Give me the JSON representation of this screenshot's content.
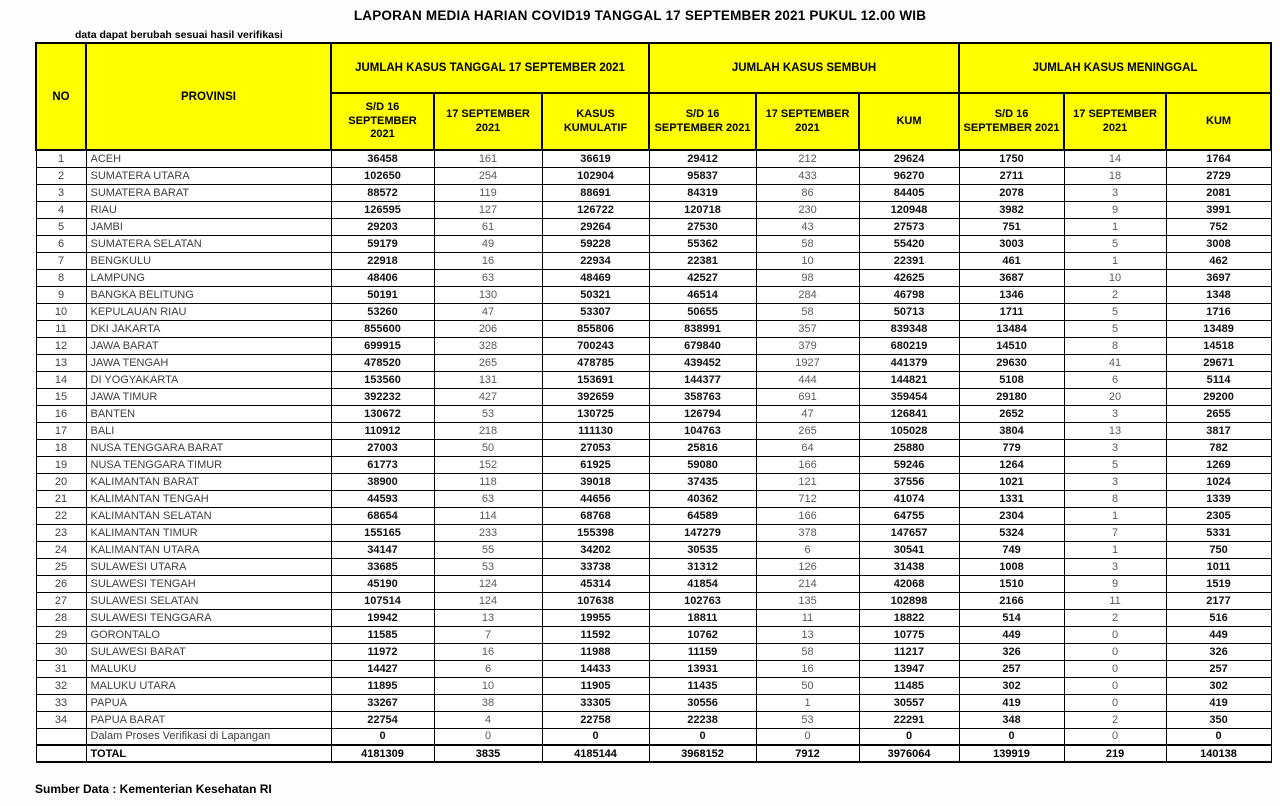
{
  "title": "LAPORAN MEDIA HARIAN COVID19 TANGGAL 17 SEPTEMBER 2021 PUKUL 12.00 WIB",
  "note": "data dapat berubah sesuai hasil verifikasi",
  "source": "Sumber Data : Kementerian Kesehatan RI",
  "colors": {
    "header_bg": "#FFFF00",
    "border": "#000000",
    "muted_text": "#595959"
  },
  "table": {
    "header": {
      "no": "NO",
      "provinsi": "PROVINSI",
      "groups": [
        {
          "label": "JUMLAH KASUS TANGGAL 17 SEPTEMBER 2021",
          "sub": [
            "S/D 16 SEPTEMBER 2021",
            "17 SEPTEMBER 2021",
            "KASUS KUMULATIF"
          ]
        },
        {
          "label": "JUMLAH KASUS SEMBUH",
          "sub": [
            "S/D 16 SEPTEMBER 2021",
            "17 SEPTEMBER 2021",
            "KUM"
          ]
        },
        {
          "label": "JUMLAH KASUS MENINGGAL",
          "sub": [
            "S/D 16 SEPTEMBER 2021",
            "17 SEPTEMBER 2021",
            "KUM"
          ]
        }
      ]
    },
    "rows": [
      {
        "no": "1",
        "provinsi": "ACEH",
        "kasus": [
          36458,
          161,
          36619
        ],
        "sembuh": [
          29412,
          212,
          29624
        ],
        "meninggal": [
          1750,
          14,
          1764
        ]
      },
      {
        "no": "2",
        "provinsi": "SUMATERA UTARA",
        "kasus": [
          102650,
          254,
          102904
        ],
        "sembuh": [
          95837,
          433,
          96270
        ],
        "meninggal": [
          2711,
          18,
          2729
        ]
      },
      {
        "no": "3",
        "provinsi": "SUMATERA BARAT",
        "kasus": [
          88572,
          119,
          88691
        ],
        "sembuh": [
          84319,
          86,
          84405
        ],
        "meninggal": [
          2078,
          3,
          2081
        ]
      },
      {
        "no": "4",
        "provinsi": "RIAU",
        "kasus": [
          126595,
          127,
          126722
        ],
        "sembuh": [
          120718,
          230,
          120948
        ],
        "meninggal": [
          3982,
          9,
          3991
        ]
      },
      {
        "no": "5",
        "provinsi": "JAMBI",
        "kasus": [
          29203,
          61,
          29264
        ],
        "sembuh": [
          27530,
          43,
          27573
        ],
        "meninggal": [
          751,
          1,
          752
        ]
      },
      {
        "no": "6",
        "provinsi": "SUMATERA SELATAN",
        "kasus": [
          59179,
          49,
          59228
        ],
        "sembuh": [
          55362,
          58,
          55420
        ],
        "meninggal": [
          3003,
          5,
          3008
        ]
      },
      {
        "no": "7",
        "provinsi": "BENGKULU",
        "kasus": [
          22918,
          16,
          22934
        ],
        "sembuh": [
          22381,
          10,
          22391
        ],
        "meninggal": [
          461,
          1,
          462
        ]
      },
      {
        "no": "8",
        "provinsi": "LAMPUNG",
        "kasus": [
          48406,
          63,
          48469
        ],
        "sembuh": [
          42527,
          98,
          42625
        ],
        "meninggal": [
          3687,
          10,
          3697
        ]
      },
      {
        "no": "9",
        "provinsi": "BANGKA BELITUNG",
        "kasus": [
          50191,
          130,
          50321
        ],
        "sembuh": [
          46514,
          284,
          46798
        ],
        "meninggal": [
          1346,
          2,
          1348
        ]
      },
      {
        "no": "10",
        "provinsi": "KEPULAUAN RIAU",
        "kasus": [
          53260,
          47,
          53307
        ],
        "sembuh": [
          50655,
          58,
          50713
        ],
        "meninggal": [
          1711,
          5,
          1716
        ]
      },
      {
        "no": "11",
        "provinsi": "DKI JAKARTA",
        "kasus": [
          855600,
          206,
          855806
        ],
        "sembuh": [
          838991,
          357,
          839348
        ],
        "meninggal": [
          13484,
          5,
          13489
        ]
      },
      {
        "no": "12",
        "provinsi": "JAWA BARAT",
        "kasus": [
          699915,
          328,
          700243
        ],
        "sembuh": [
          679840,
          379,
          680219
        ],
        "meninggal": [
          14510,
          8,
          14518
        ]
      },
      {
        "no": "13",
        "provinsi": "JAWA TENGAH",
        "kasus": [
          478520,
          265,
          478785
        ],
        "sembuh": [
          439452,
          1927,
          441379
        ],
        "meninggal": [
          29630,
          41,
          29671
        ]
      },
      {
        "no": "14",
        "provinsi": "DI YOGYAKARTA",
        "kasus": [
          153560,
          131,
          153691
        ],
        "sembuh": [
          144377,
          444,
          144821
        ],
        "meninggal": [
          5108,
          6,
          5114
        ]
      },
      {
        "no": "15",
        "provinsi": "JAWA TIMUR",
        "kasus": [
          392232,
          427,
          392659
        ],
        "sembuh": [
          358763,
          691,
          359454
        ],
        "meninggal": [
          29180,
          20,
          29200
        ]
      },
      {
        "no": "16",
        "provinsi": "BANTEN",
        "kasus": [
          130672,
          53,
          130725
        ],
        "sembuh": [
          126794,
          47,
          126841
        ],
        "meninggal": [
          2652,
          3,
          2655
        ]
      },
      {
        "no": "17",
        "provinsi": "BALI",
        "kasus": [
          110912,
          218,
          111130
        ],
        "sembuh": [
          104763,
          265,
          105028
        ],
        "meninggal": [
          3804,
          13,
          3817
        ]
      },
      {
        "no": "18",
        "provinsi": "NUSA TENGGARA BARAT",
        "kasus": [
          27003,
          50,
          27053
        ],
        "sembuh": [
          25816,
          64,
          25880
        ],
        "meninggal": [
          779,
          3,
          782
        ]
      },
      {
        "no": "19",
        "provinsi": "NUSA TENGGARA TIMUR",
        "kasus": [
          61773,
          152,
          61925
        ],
        "sembuh": [
          59080,
          166,
          59246
        ],
        "meninggal": [
          1264,
          5,
          1269
        ]
      },
      {
        "no": "20",
        "provinsi": "KALIMANTAN BARAT",
        "kasus": [
          38900,
          118,
          39018
        ],
        "sembuh": [
          37435,
          121,
          37556
        ],
        "meninggal": [
          1021,
          3,
          1024
        ]
      },
      {
        "no": "21",
        "provinsi": "KALIMANTAN TENGAH",
        "kasus": [
          44593,
          63,
          44656
        ],
        "sembuh": [
          40362,
          712,
          41074
        ],
        "meninggal": [
          1331,
          8,
          1339
        ]
      },
      {
        "no": "22",
        "provinsi": "KALIMANTAN SELATAN",
        "kasus": [
          68654,
          114,
          68768
        ],
        "sembuh": [
          64589,
          166,
          64755
        ],
        "meninggal": [
          2304,
          1,
          2305
        ]
      },
      {
        "no": "23",
        "provinsi": "KALIMANTAN TIMUR",
        "kasus": [
          155165,
          233,
          155398
        ],
        "sembuh": [
          147279,
          378,
          147657
        ],
        "meninggal": [
          5324,
          7,
          5331
        ]
      },
      {
        "no": "24",
        "provinsi": "KALIMANTAN UTARA",
        "kasus": [
          34147,
          55,
          34202
        ],
        "sembuh": [
          30535,
          6,
          30541
        ],
        "meninggal": [
          749,
          1,
          750
        ]
      },
      {
        "no": "25",
        "provinsi": "SULAWESI UTARA",
        "kasus": [
          33685,
          53,
          33738
        ],
        "sembuh": [
          31312,
          126,
          31438
        ],
        "meninggal": [
          1008,
          3,
          1011
        ]
      },
      {
        "no": "26",
        "provinsi": "SULAWESI TENGAH",
        "kasus": [
          45190,
          124,
          45314
        ],
        "sembuh": [
          41854,
          214,
          42068
        ],
        "meninggal": [
          1510,
          9,
          1519
        ]
      },
      {
        "no": "27",
        "provinsi": "SULAWESI SELATAN",
        "kasus": [
          107514,
          124,
          107638
        ],
        "sembuh": [
          102763,
          135,
          102898
        ],
        "meninggal": [
          2166,
          11,
          2177
        ]
      },
      {
        "no": "28",
        "provinsi": "SULAWESI TENGGARA",
        "kasus": [
          19942,
          13,
          19955
        ],
        "sembuh": [
          18811,
          11,
          18822
        ],
        "meninggal": [
          514,
          2,
          516
        ]
      },
      {
        "no": "29",
        "provinsi": "GORONTALO",
        "kasus": [
          11585,
          7,
          11592
        ],
        "sembuh": [
          10762,
          13,
          10775
        ],
        "meninggal": [
          449,
          0,
          449
        ]
      },
      {
        "no": "30",
        "provinsi": "SULAWESI BARAT",
        "kasus": [
          11972,
          16,
          11988
        ],
        "sembuh": [
          11159,
          58,
          11217
        ],
        "meninggal": [
          326,
          0,
          326
        ]
      },
      {
        "no": "31",
        "provinsi": "MALUKU",
        "kasus": [
          14427,
          6,
          14433
        ],
        "sembuh": [
          13931,
          16,
          13947
        ],
        "meninggal": [
          257,
          0,
          257
        ]
      },
      {
        "no": "32",
        "provinsi": "MALUKU UTARA",
        "kasus": [
          11895,
          10,
          11905
        ],
        "sembuh": [
          11435,
          50,
          11485
        ],
        "meninggal": [
          302,
          0,
          302
        ]
      },
      {
        "no": "33",
        "provinsi": "PAPUA",
        "kasus": [
          33267,
          38,
          33305
        ],
        "sembuh": [
          30556,
          1,
          30557
        ],
        "meninggal": [
          419,
          0,
          419
        ]
      },
      {
        "no": "34",
        "provinsi": "PAPUA BARAT",
        "kasus": [
          22754,
          4,
          22758
        ],
        "sembuh": [
          22238,
          53,
          22291
        ],
        "meninggal": [
          348,
          2,
          350
        ]
      },
      {
        "no": "",
        "provinsi": "Dalam Proses Verifikasi di Lapangan",
        "kasus": [
          0,
          0,
          0
        ],
        "sembuh": [
          0,
          0,
          0
        ],
        "meninggal": [
          0,
          0,
          0
        ]
      }
    ],
    "total": {
      "label": "TOTAL",
      "kasus": [
        4181309,
        3835,
        4185144
      ],
      "sembuh": [
        3968152,
        7912,
        3976064
      ],
      "meninggal": [
        139919,
        219,
        140138
      ]
    }
  }
}
